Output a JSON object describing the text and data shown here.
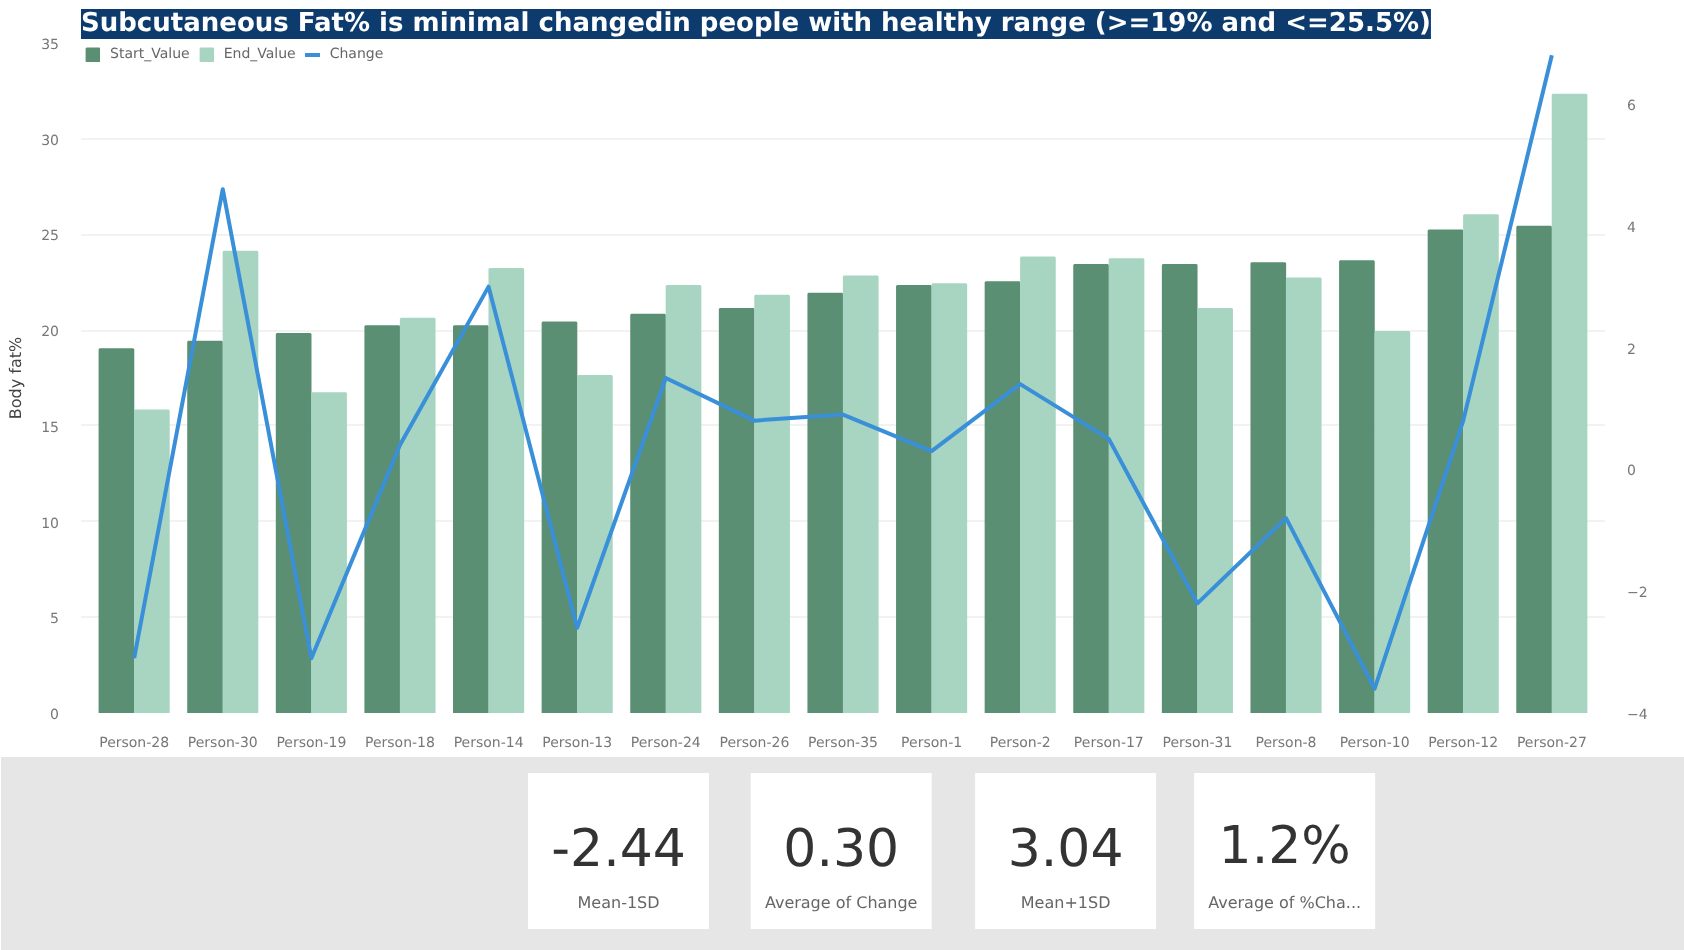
{
  "chart_data": [
    {
      "type": "bar",
      "title": "Subcutaneous Fat% is minimal changedin people with healthy range (>=19% and <=25.5%)",
      "ylabel": "Body fat%",
      "categories": [
        "Person-28",
        "Person-30",
        "Person-19",
        "Person-18",
        "Person-14",
        "Person-13",
        "Person-24",
        "Person-26",
        "Person-35",
        "Person-1",
        "Person-2",
        "Person-17",
        "Person-31",
        "Person-8",
        "Person-10",
        "Person-12",
        "Person-27"
      ],
      "series": [
        {
          "name": "Start_Value",
          "color": "#5a8f73",
          "values": [
            19.0,
            19.4,
            19.8,
            20.2,
            20.2,
            20.4,
            20.8,
            21.1,
            21.9,
            22.3,
            22.5,
            23.4,
            23.4,
            23.5,
            23.6,
            25.2,
            25.4
          ]
        },
        {
          "name": "End_Value",
          "color": "#a8d5c2",
          "values": [
            15.8,
            24.1,
            16.7,
            20.6,
            23.2,
            17.6,
            22.3,
            21.8,
            22.8,
            22.4,
            23.8,
            23.7,
            21.1,
            22.7,
            19.9,
            26.0,
            32.3
          ]
        },
        {
          "name": "Change",
          "color": "#3a8fd9",
          "type": "line",
          "axis": "y2",
          "values": [
            -3.1,
            4.6,
            -3.1,
            0.4,
            3.0,
            -2.6,
            1.5,
            0.8,
            0.9,
            0.3,
            1.4,
            0.5,
            -2.2,
            -0.8,
            -3.6,
            0.8,
            6.8
          ]
        }
      ],
      "ylim": [
        0,
        35
      ],
      "yticks": [
        0,
        5,
        10,
        15,
        20,
        25,
        30,
        35
      ],
      "y2lim": [
        -4,
        7
      ],
      "y2ticks": [
        -4,
        -2,
        0,
        2,
        4,
        6
      ],
      "legend": "top left",
      "grid": "y",
      "marker": "none",
      "line_style": "solid"
    },
    {
      "type": "other",
      "annotations": [
        "-2.44",
        "Mean-1SD",
        "0.30",
        "Average of Change",
        "3.04",
        "Mean+1SD",
        "1.2%",
        "Average of %Cha..."
      ]
    }
  ]
}
